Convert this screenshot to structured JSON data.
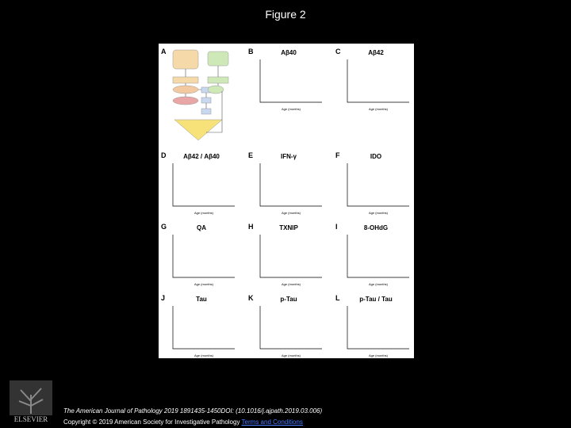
{
  "header": {
    "title": "Figure 2"
  },
  "figure": {
    "panels": [
      {
        "label": "A"
      },
      {
        "label": "B",
        "title": "Aβ40",
        "xlabel": "Age (months)"
      },
      {
        "label": "C",
        "title": "Aβ42",
        "xlabel": "Age (months)"
      },
      {
        "label": "D",
        "title": "Aβ42 / Aβ40",
        "xlabel": "Age (months)"
      },
      {
        "label": "E",
        "title": "IFN-γ",
        "xlabel": "Age (months)"
      },
      {
        "label": "F",
        "title": "IDO",
        "xlabel": "Age (months)"
      },
      {
        "label": "G",
        "title": "QA",
        "xlabel": "Age (months)"
      },
      {
        "label": "H",
        "title": "TXNIP",
        "xlabel": "Age (months)"
      },
      {
        "label": "I",
        "title": "8-OHdG",
        "xlabel": "Age (months)"
      },
      {
        "label": "J",
        "title": "Tau",
        "xlabel": "Age (months)"
      },
      {
        "label": "K",
        "title": "p-Tau",
        "xlabel": "Age (months)"
      },
      {
        "label": "L",
        "title": "p-Tau / Tau",
        "xlabel": "Age (months)"
      }
    ]
  },
  "footer": {
    "citation": "The American Journal of Pathology 2019 1891435-1450DOI: (10.1016/j.ajpath.2019.03.006)",
    "copyright": "Copyright © 2019 American Society for Investigative Pathology",
    "link": "Terms and Conditions"
  },
  "logo": {
    "text": "ELSEVIER"
  }
}
